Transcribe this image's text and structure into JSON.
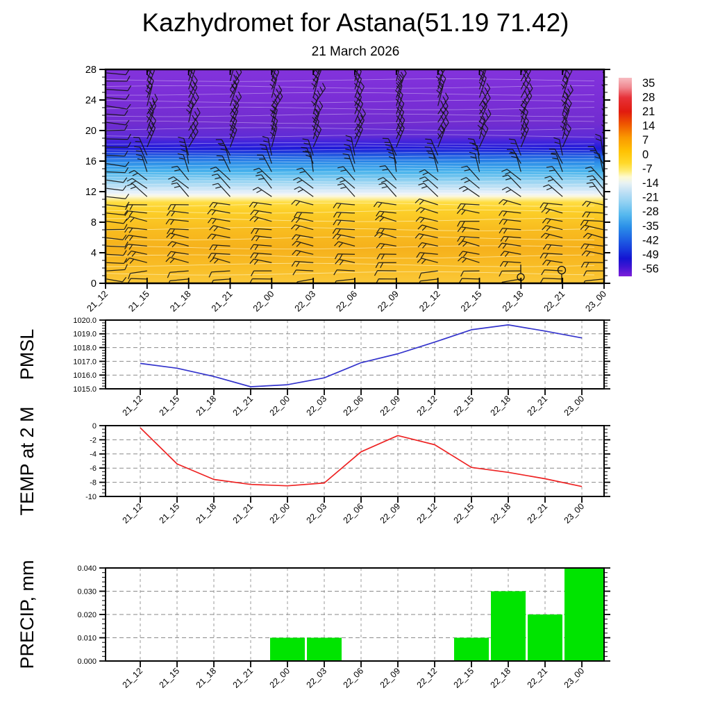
{
  "title": "Kazhydromet for Astana(51.19 71.42)",
  "subtitle": "21 March 2026",
  "time_labels": [
    "21_12",
    "21_15",
    "21_18",
    "21_21",
    "22_00",
    "22_03",
    "22_06",
    "22_09",
    "22_12",
    "22_15",
    "22_18",
    "22_21",
    "23_00"
  ],
  "chart_data": [
    {
      "id": "temperature_cross_section",
      "type": "heatmap",
      "description": "Time-height temperature cross-section with wind barbs and faint contour lines; colors are roughly horizontal bands by altitude",
      "x": [
        "21_12",
        "21_15",
        "21_18",
        "21_21",
        "22_00",
        "22_03",
        "22_06",
        "22_09",
        "22_12",
        "22_15",
        "22_18",
        "22_21",
        "23_00"
      ],
      "ylim": [
        0,
        28
      ],
      "yticks": [
        0,
        4,
        8,
        12,
        16,
        20,
        24,
        28
      ],
      "wind_barbs": "black wind barbs at every time column, ~26 levels per column; near-horizontal pointing barbs at low levels, steeply slanted multi-feather barbs aloft",
      "calm_markers": [
        {
          "time": "22_18",
          "altitude": 1.0
        },
        {
          "time": "22_21",
          "altitude": 1.8
        }
      ],
      "color_bands_by_altitude": [
        {
          "alt": 0.0,
          "color": "#FAC83A"
        },
        {
          "alt": 2.0,
          "color": "#F9BE27"
        },
        {
          "alt": 4.5,
          "color": "#F6B11C"
        },
        {
          "alt": 7.0,
          "color": "#F8BC1F"
        },
        {
          "alt": 9.5,
          "color": "#FCCF28"
        },
        {
          "alt": 10.6,
          "color": "#FFDD41"
        },
        {
          "alt": 11.0,
          "color": "#FCEC91"
        },
        {
          "alt": 11.4,
          "color": "#FCF8DF"
        },
        {
          "alt": 11.8,
          "color": "#E9F1FA"
        },
        {
          "alt": 12.4,
          "color": "#C9E4F6"
        },
        {
          "alt": 13.4,
          "color": "#93D2F1"
        },
        {
          "alt": 14.6,
          "color": "#49B4EC"
        },
        {
          "alt": 15.8,
          "color": "#2C8DE8"
        },
        {
          "alt": 16.8,
          "color": "#2157E0"
        },
        {
          "alt": 17.6,
          "color": "#1D1BD8"
        },
        {
          "alt": 18.4,
          "color": "#3C22DC"
        },
        {
          "alt": 19.2,
          "color": "#5F2BD6"
        },
        {
          "alt": 21.0,
          "color": "#712DD0"
        },
        {
          "alt": 24.0,
          "color": "#7A2ED6"
        },
        {
          "alt": 28.0,
          "color": "#8333DC"
        }
      ],
      "colorbar": {
        "tick_labels": [
          "35",
          "28",
          "21",
          "14",
          "7",
          "0",
          "-7",
          "-14",
          "-21",
          "-28",
          "-35",
          "-42",
          "-49",
          "-56"
        ],
        "gradient_top_to_bottom": [
          [
            0.0,
            "#F7BCC1"
          ],
          [
            0.05,
            "#F0868E"
          ],
          [
            0.1,
            "#E73239"
          ],
          [
            0.17,
            "#E11B0F"
          ],
          [
            0.23,
            "#EE5300"
          ],
          [
            0.3,
            "#FA9800"
          ],
          [
            0.37,
            "#FFC203"
          ],
          [
            0.43,
            "#FFD92B"
          ],
          [
            0.47,
            "#FEEC77"
          ],
          [
            0.5,
            "#FEFAD2"
          ],
          [
            0.53,
            "#E8F2F3"
          ],
          [
            0.57,
            "#C4E2F5"
          ],
          [
            0.63,
            "#8FD0F2"
          ],
          [
            0.69,
            "#55B8EE"
          ],
          [
            0.75,
            "#2B90E8"
          ],
          [
            0.81,
            "#1F64E4"
          ],
          [
            0.87,
            "#1736DB"
          ],
          [
            0.91,
            "#1414D2"
          ],
          [
            0.95,
            "#3D14D3"
          ],
          [
            1.0,
            "#7D1FD9"
          ]
        ]
      }
    },
    {
      "id": "pmsl",
      "type": "line",
      "ylabel": "PMSL",
      "line_color": "#3333CC",
      "x": [
        "21_12",
        "21_15",
        "21_18",
        "21_21",
        "22_00",
        "22_03",
        "22_06",
        "22_09",
        "22_12",
        "22_15",
        "22_18",
        "22_21",
        "23_00"
      ],
      "values": [
        1016.85,
        1016.5,
        1015.9,
        1015.15,
        1015.3,
        1015.8,
        1016.9,
        1017.55,
        1018.4,
        1019.3,
        1019.65,
        1019.2,
        1018.7
      ],
      "ylim": [
        1015.0,
        1020.0
      ],
      "ytick_values": [
        1015,
        1016,
        1017,
        1018,
        1019,
        1020
      ],
      "ytick_labels": [
        "1015.0",
        "1016.0",
        "1017.0",
        "1018.0",
        "1019.0",
        "1020.0"
      ],
      "grid": "dashed gray horizontal and vertical"
    },
    {
      "id": "temp_2m",
      "type": "line",
      "ylabel": "TEMP at 2 M",
      "line_color": "#EE2222",
      "x": [
        "21_12",
        "21_15",
        "21_18",
        "21_21",
        "22_00",
        "22_03",
        "22_06",
        "22_09",
        "22_12",
        "22_15",
        "22_18",
        "22_21",
        "23_00"
      ],
      "values": [
        -0.3,
        -5.4,
        -7.6,
        -8.3,
        -8.5,
        -8.1,
        -3.7,
        -1.4,
        -2.7,
        -5.9,
        -6.6,
        -7.5,
        -8.6
      ],
      "ylim": [
        -10,
        0
      ],
      "ytick_values": [
        0,
        -2,
        -4,
        -6,
        -8,
        -10
      ],
      "ytick_labels": [
        "0",
        "-2",
        "-4",
        "-6",
        "-8",
        "-10"
      ],
      "grid": "dashed gray horizontal and vertical"
    },
    {
      "id": "precip",
      "type": "bar",
      "ylabel": "PRECIP, mm",
      "bar_color": "#00E400",
      "x": [
        "21_12",
        "21_15",
        "21_18",
        "21_21",
        "22_00",
        "22_03",
        "22_06",
        "22_09",
        "22_12",
        "22_15",
        "22_18",
        "22_21",
        "23_00"
      ],
      "values": [
        0,
        0,
        0,
        0,
        0.01,
        0.01,
        0,
        0,
        0,
        0.01,
        0.03,
        0.02,
        0.04
      ],
      "ylim": [
        0.0,
        0.04
      ],
      "ytick_values": [
        0,
        0.01,
        0.02,
        0.03,
        0.04
      ],
      "ytick_labels": [
        "0.000",
        "0.010",
        "0.020",
        "0.030",
        "0.040"
      ],
      "grid": "dashed gray horizontal and vertical"
    }
  ]
}
